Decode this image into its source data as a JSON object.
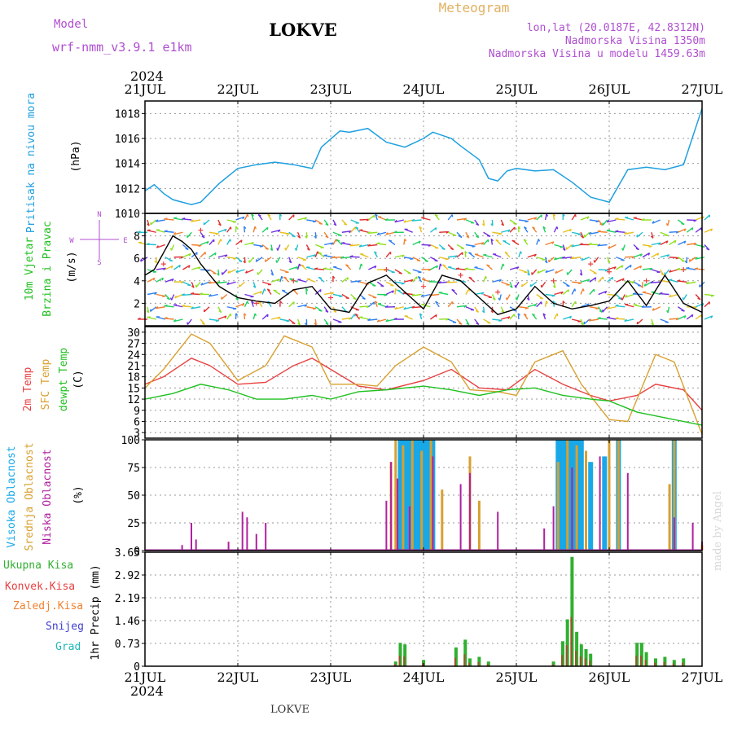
{
  "header": {
    "model_label": "Model",
    "model_name": "wrf-nmm_v3.9.1 e1km",
    "station": "LOKVE",
    "meteogram_title": "Meteogram",
    "lonlat": "lon,lat (20.0187E, 42.8312N)",
    "elevation": "Nadmorska Visina 1350m",
    "model_elevation": "Nadmorska Visina u modelu 1459.63m"
  },
  "footer": {
    "station": "LOKVE",
    "watermark": "made by Angel"
  },
  "colors": {
    "pressure": "#1e9fe0",
    "wind_speed": "#000000",
    "temp_2m": "#e84040",
    "temp_sfc": "#d8a030",
    "dewpoint": "#20c020",
    "cloud_high": "#18a8e8",
    "cloud_mid": "#d8a030",
    "cloud_low": "#b020a0",
    "precip_total": "#30b030",
    "precip_conv": "#e84040",
    "precip_frozen": "#f08030",
    "snow": "#4040d0",
    "hail": "#20b8b8",
    "grid": "#999999"
  },
  "time_axis": {
    "year": "2024",
    "day_labels": [
      "21JUL",
      "22JUL",
      "23JUL",
      "24JUL",
      "25JUL",
      "26JUL",
      "27JUL"
    ]
  },
  "chart_data": [
    {
      "id": "pressure",
      "type": "line",
      "ylabel_name": "Pritisak na nivou mora",
      "ylabel_unit": "(hPa)",
      "ylim": [
        1010,
        1019
      ],
      "yticks": [
        1010,
        1012,
        1014,
        1016,
        1018
      ],
      "x_days": [
        0,
        0.1,
        0.2,
        0.3,
        0.5,
        0.6,
        0.8,
        1.0,
        1.2,
        1.4,
        1.5,
        1.6,
        1.8,
        1.9,
        2.1,
        2.2,
        2.4,
        2.6,
        2.8,
        3.0,
        3.1,
        3.3,
        3.4,
        3.6,
        3.7,
        3.8,
        3.9,
        4.0,
        4.2,
        4.4,
        4.6,
        4.8,
        5.0,
        5.2,
        5.4,
        5.6,
        5.8,
        6.0
      ],
      "values": [
        1011.8,
        1012.3,
        1011.6,
        1011.1,
        1010.7,
        1010.9,
        1012.4,
        1013.6,
        1013.9,
        1014.1,
        1014.0,
        1013.9,
        1013.6,
        1015.3,
        1016.6,
        1016.5,
        1016.8,
        1015.7,
        1015.3,
        1016.0,
        1016.5,
        1016.0,
        1015.4,
        1014.3,
        1012.8,
        1012.6,
        1013.4,
        1013.6,
        1013.4,
        1013.5,
        1012.5,
        1011.3,
        1010.9,
        1013.5,
        1013.7,
        1013.5,
        1013.9,
        1018.4
      ]
    },
    {
      "id": "wind",
      "type": "line",
      "ylabel_name": "10m Vjetar",
      "ylabel_name2": "Brzina i Pravac",
      "ylabel_unit": "(m/s)",
      "compass": [
        "N",
        "E",
        "S",
        "W"
      ],
      "ylim": [
        0,
        10
      ],
      "yticks": [
        2,
        4,
        6,
        8
      ],
      "series": [
        {
          "name": "speed",
          "x_days": [
            0,
            0.1,
            0.2,
            0.3,
            0.4,
            0.5,
            0.6,
            0.7,
            0.8,
            0.9,
            1.0,
            1.2,
            1.4,
            1.6,
            1.8,
            2.0,
            2.2,
            2.4,
            2.6,
            2.8,
            3.0,
            3.2,
            3.4,
            3.6,
            3.8,
            4.0,
            4.2,
            4.4,
            4.6,
            4.8,
            5.0,
            5.2,
            5.4,
            5.6,
            5.8,
            6.0
          ],
          "values": [
            4.5,
            5.0,
            6.5,
            8.0,
            7.5,
            6.8,
            5.5,
            4.5,
            3.5,
            3.0,
            2.5,
            2.2,
            2.0,
            3.2,
            3.5,
            1.5,
            1.2,
            3.8,
            4.5,
            3.0,
            1.5,
            4.5,
            4.0,
            2.5,
            1.0,
            1.5,
            3.5,
            2.0,
            1.5,
            1.8,
            2.2,
            4.0,
            1.8,
            4.5,
            2.0,
            1.2
          ]
        },
        {
          "name": "gust",
          "x_days": [
            0.2,
            0.6,
            1.2,
            1.6,
            2.0,
            2.6,
            3.0,
            3.4,
            3.8,
            4.4,
            4.8,
            5.0,
            5.4,
            5.8
          ],
          "values": [
            5.5,
            8.5,
            2.0,
            4.0,
            2.5,
            5.0,
            3.5,
            4.5,
            3.0,
            4.0,
            5.5,
            4.8,
            4.0,
            5.0
          ]
        }
      ]
    },
    {
      "id": "temperature",
      "type": "line",
      "ylabel_names": [
        "2m Temp",
        "SFC Temp",
        "dewpt Temp"
      ],
      "ylabel_unit": "(C)",
      "ylim": [
        1.5,
        31.5
      ],
      "yticks": [
        3,
        6,
        9,
        12,
        15,
        18,
        21,
        24,
        27,
        30
      ],
      "series": [
        {
          "name": "2m Temp",
          "x_days": [
            0,
            0.2,
            0.5,
            0.7,
            1.0,
            1.3,
            1.6,
            1.8,
            2.0,
            2.3,
            2.6,
            3.0,
            3.3,
            3.6,
            3.9,
            4.2,
            4.5,
            4.8,
            5.0,
            5.3,
            5.5,
            5.8,
            6.0
          ],
          "values": [
            16.0,
            18.0,
            23.0,
            21.0,
            16.0,
            16.5,
            21.0,
            23.0,
            20.0,
            15.5,
            14.5,
            17.0,
            20.0,
            15.0,
            14.5,
            20.0,
            16.0,
            13.0,
            11.5,
            13.0,
            16.0,
            14.5,
            9.0
          ]
        },
        {
          "name": "SFC Temp",
          "x_days": [
            0,
            0.2,
            0.5,
            0.7,
            1.0,
            1.3,
            1.5,
            1.8,
            2.0,
            2.3,
            2.5,
            2.7,
            3.0,
            3.3,
            3.5,
            3.8,
            4.0,
            4.2,
            4.5,
            4.7,
            5.0,
            5.2,
            5.5,
            5.7,
            6.0
          ],
          "values": [
            15.0,
            20.0,
            29.5,
            27.0,
            17.0,
            21.0,
            29.0,
            26.0,
            16.0,
            16.0,
            15.5,
            21.0,
            26.0,
            22.0,
            14.5,
            14.0,
            13.0,
            22.0,
            25.0,
            16.0,
            6.5,
            6.0,
            24.0,
            22.0,
            2.5
          ]
        },
        {
          "name": "dewpt Temp",
          "x_days": [
            0,
            0.3,
            0.6,
            0.9,
            1.2,
            1.5,
            1.8,
            2.0,
            2.3,
            2.6,
            3.0,
            3.3,
            3.6,
            3.9,
            4.2,
            4.5,
            4.8,
            5.0,
            5.3,
            5.6,
            6.0
          ],
          "values": [
            12.0,
            13.5,
            16.0,
            14.5,
            12.0,
            12.0,
            13.0,
            12.0,
            14.0,
            14.5,
            15.5,
            14.5,
            13.0,
            14.5,
            15.0,
            13.0,
            12.0,
            11.5,
            8.5,
            7.0,
            5.0
          ]
        }
      ]
    },
    {
      "id": "clouds",
      "type": "bar",
      "ylabel_names": [
        "Visoka Oblacnost",
        "Srednja Oblacnost",
        "Niska Oblacnost"
      ],
      "ylabel_unit": "(%)",
      "ylim": [
        0,
        100
      ],
      "yticks": [
        0,
        25,
        50,
        75,
        100
      ],
      "series": [
        {
          "name": "Visoka Oblacnost",
          "x_days": [
            2.75,
            2.8,
            2.85,
            2.9,
            2.95,
            3.0,
            3.05,
            3.1,
            4.45,
            4.5,
            4.55,
            4.6,
            4.65,
            4.7,
            4.8,
            4.95,
            5.1,
            5.7
          ],
          "values": [
            100,
            100,
            100,
            100,
            100,
            100,
            100,
            100,
            100,
            100,
            100,
            100,
            100,
            100,
            80,
            85,
            100,
            100
          ]
        },
        {
          "name": "Srednja Oblacnost",
          "x_days": [
            2.65,
            2.7,
            2.78,
            2.88,
            2.98,
            3.08,
            3.2,
            3.5,
            3.6,
            4.45,
            4.55,
            4.65,
            4.75,
            5.0,
            5.1,
            5.65,
            5.7,
            6.0
          ],
          "values": [
            80,
            100,
            95,
            100,
            90,
            100,
            55,
            85,
            45,
            80,
            100,
            95,
            90,
            100,
            100,
            60,
            100,
            5
          ]
        },
        {
          "name": "Niska Oblacnost",
          "x_days": [
            0.4,
            0.5,
            0.55,
            0.9,
            1.05,
            1.1,
            1.2,
            1.3,
            2.6,
            2.65,
            2.72,
            2.85,
            3.1,
            3.4,
            3.5,
            3.8,
            4.3,
            4.4,
            4.6,
            4.9,
            5.2,
            5.7,
            5.9,
            6.0
          ],
          "values": [
            5,
            25,
            10,
            8,
            35,
            30,
            15,
            25,
            45,
            80,
            65,
            40,
            85,
            60,
            70,
            35,
            20,
            40,
            75,
            85,
            70,
            30,
            25,
            8
          ]
        }
      ]
    },
    {
      "id": "precip",
      "type": "bar",
      "ylabel_name": "1hr Precip (mm)",
      "legend": [
        "Ukupna Kisa",
        "Konvek.Kisa",
        "Zaledj.Kisa",
        "Snijeg",
        "Grad"
      ],
      "ylim": [
        0,
        3.65
      ],
      "yticks": [
        0,
        0.73,
        1.46,
        2.19,
        2.92,
        3.65
      ],
      "series": [
        {
          "name": "Ukupna Kisa",
          "x_days": [
            2.7,
            2.75,
            2.8,
            3.0,
            3.35,
            3.45,
            3.5,
            3.6,
            3.7,
            4.4,
            4.5,
            4.55,
            4.6,
            4.65,
            4.7,
            4.75,
            4.8,
            5.3,
            5.35,
            5.4,
            5.5,
            5.6,
            5.7,
            5.8
          ],
          "values": [
            0.15,
            0.75,
            0.7,
            0.2,
            0.6,
            0.85,
            0.25,
            0.3,
            0.15,
            0.15,
            0.8,
            1.5,
            3.5,
            1.1,
            0.7,
            0.55,
            0.4,
            0.75,
            0.75,
            0.45,
            0.25,
            0.3,
            0.2,
            0.25
          ]
        }
      ]
    }
  ]
}
